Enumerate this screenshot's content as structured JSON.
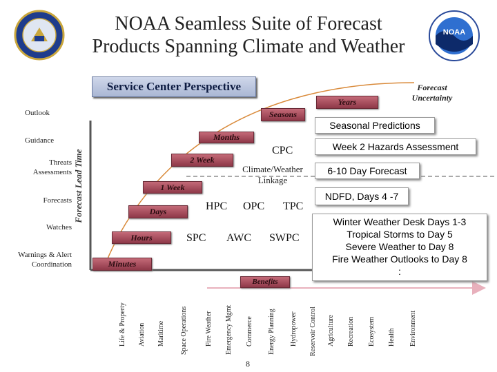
{
  "title": {
    "line1": "NOAA Seamless Suite of Forecast",
    "line2": "Products Spanning Climate and Weather"
  },
  "service_center": "Service Center Perspective",
  "forecast_uncertainty": {
    "line1": "Forecast",
    "line2": "Uncertainty"
  },
  "y_axis_label": "Forecast Lead Time",
  "left_labels": {
    "outlook": "Outlook",
    "guidance": "Guidance",
    "threats_1": "Threats",
    "threats_2": "Assessments",
    "forecasts": "Forecasts",
    "watches": "Watches",
    "warnings_1": "Warnings & Alert",
    "warnings_2": "Coordination"
  },
  "time_banners": {
    "years": "Years",
    "seasons": "Seasons",
    "months": "Months",
    "two_week": "2 Week",
    "one_week": "1 Week",
    "days": "Days",
    "hours": "Hours",
    "minutes": "Minutes"
  },
  "centers": {
    "cpc": "CPC",
    "linkage_1": "Climate/Weather",
    "linkage_2": "Linkage",
    "hpc": "HPC",
    "opc": "OPC",
    "tpc": "TPC",
    "spc": "SPC",
    "awc": "AWC",
    "swpc": "SWPC"
  },
  "right_boxes": {
    "seasonal": "Seasonal Predictions",
    "week2": "Week 2 Hazards Assessment",
    "day610": "6-10 Day Forecast",
    "ndfd": "NDFD, Days 4 -7",
    "winter_1": "Winter Weather Desk Days 1-3",
    "winter_2": "Tropical Storms to Day 5",
    "winter_3": "Severe Weather to Day 8",
    "winter_4": "Fire Weather Outlooks to Day 8",
    "winter_5": ":"
  },
  "benefits_label": "Benefits",
  "benefits": [
    "Life & Property",
    "Aviation",
    "Maritime",
    "Space Operations",
    "Fire Weather",
    "Emergency Mgmt",
    "Commerce",
    "Energy Planning",
    "Hydropower",
    "Reservoir Control",
    "Agriculture",
    "Recreation",
    "Ecosystem",
    "Health",
    "Environment"
  ],
  "page_number": "8",
  "colors": {
    "banner": "#a84a5c",
    "curve": "#d98a3a",
    "arrow": "#e8b0bc",
    "title_box": "#b7c3de"
  }
}
